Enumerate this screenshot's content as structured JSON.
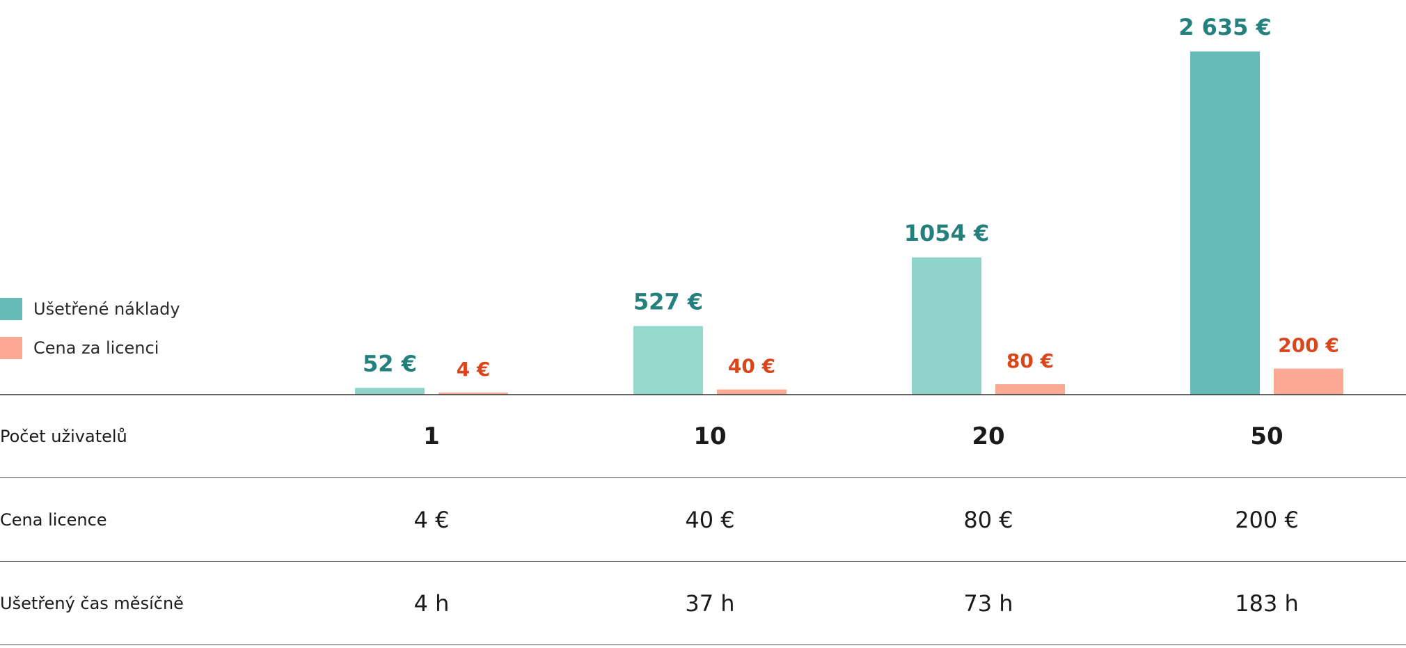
{
  "legend": {
    "saved": {
      "label": "Ušetřené náklady",
      "color": "#66bbb6"
    },
    "license": {
      "label": "Cena za licenci",
      "color": "#fba994"
    }
  },
  "table": {
    "users_label": "Počet uživatelů",
    "license_price_label": "Cena licence",
    "time_saved_label": "Ušetřený čas měsíčně",
    "users": [
      "1",
      "10",
      "20",
      "50"
    ],
    "license_price": [
      "4 €",
      "40 €",
      "80 €",
      "200 €"
    ],
    "time_saved": [
      "4 h",
      "37 h",
      "73 h",
      "183 h"
    ]
  },
  "chart_data": {
    "type": "bar",
    "categories": [
      "1",
      "10",
      "20",
      "50"
    ],
    "series": [
      {
        "name": "Ušetřené náklady",
        "values": [
          52,
          527,
          1054,
          2635
        ],
        "labels": [
          "52 €",
          "527 €",
          "1054 €",
          "2 635 €"
        ],
        "colors": [
          "#8fd3cb",
          "#95d9cf",
          "#8fd3cb",
          "#66bbb6"
        ],
        "label_color": "#23807d"
      },
      {
        "name": "Cena za licenci",
        "values": [
          4,
          40,
          80,
          200
        ],
        "labels": [
          "4 €",
          "40 €",
          "80 €",
          "200 €"
        ],
        "colors": [
          "#fba994",
          "#fba994",
          "#fba994",
          "#fba994"
        ],
        "label_color": "#d9461c"
      }
    ],
    "ylim": [
      0,
      2635
    ],
    "grid": false
  }
}
